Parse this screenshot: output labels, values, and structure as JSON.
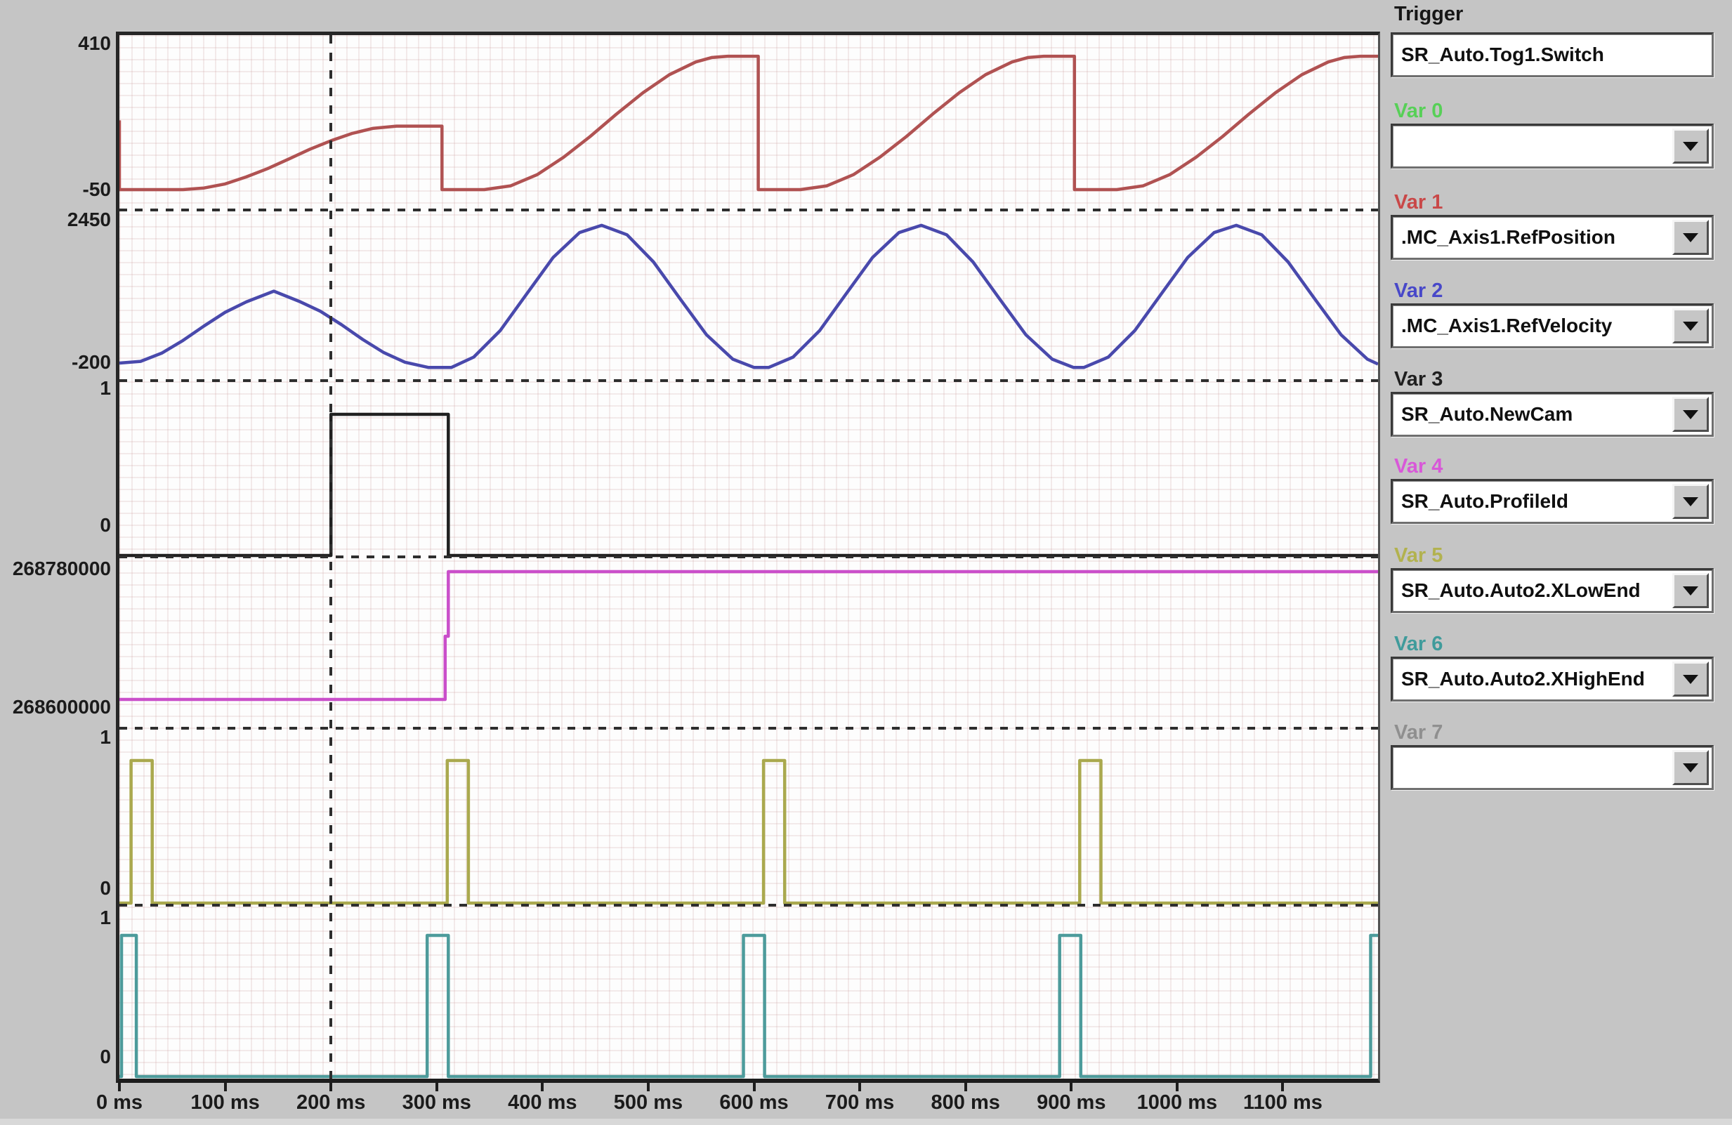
{
  "panel": {
    "trigger_label": "Trigger",
    "trigger_value": "SR_Auto.Tog1.Switch",
    "vars": [
      {
        "label": "Var 0",
        "color": "#57d057",
        "value": ""
      },
      {
        "label": "Var 1",
        "color": "#c94848",
        "value": ".MC_Axis1.RefPosition"
      },
      {
        "label": "Var 2",
        "color": "#4848c9",
        "value": ".MC_Axis1.RefVelocity"
      },
      {
        "label": "Var 3",
        "color": "#1f1f1f",
        "value": "SR_Auto.NewCam"
      },
      {
        "label": "Var 4",
        "color": "#d858d8",
        "value": "SR_Auto.ProfileId"
      },
      {
        "label": "Var 5",
        "color": "#b2b24f",
        "value": "SR_Auto.Auto2.XLowEnd"
      },
      {
        "label": "Var 6",
        "color": "#3f9b9b",
        "value": "SR_Auto.Auto2.XHighEnd"
      },
      {
        "label": "Var 7",
        "color": "#8f8f8f",
        "value": ""
      }
    ]
  },
  "chart_data": {
    "type": "line",
    "title": "",
    "x_unit": "ms",
    "x_range": [
      0,
      1190
    ],
    "x_ticks_ms": [
      0,
      100,
      200,
      300,
      400,
      500,
      600,
      700,
      800,
      900,
      1000,
      1100
    ],
    "x_tick_labels": [
      "0 ms",
      "100 ms",
      "200 ms",
      "300 ms",
      "400 ms",
      "500 ms",
      "600 ms",
      "700 ms",
      "800 ms",
      "900 ms",
      "1000 ms",
      "1100 ms"
    ],
    "trigger_cursor_ms": 200,
    "grid": "fine dotted",
    "legend_position": "right-panel",
    "series": [
      {
        "name": ".MC_Axis1.RefPosition",
        "var": "Var 1",
        "color": "#b05252",
        "axis_max_label": "410",
        "axis_min_label": "-50",
        "axis_max": 410,
        "axis_min": -50,
        "points": [
          [
            0,
            168
          ],
          [
            0,
            -50
          ],
          [
            60,
            -50
          ],
          [
            80,
            -45
          ],
          [
            100,
            -32
          ],
          [
            120,
            -10
          ],
          [
            140,
            16
          ],
          [
            160,
            46
          ],
          [
            180,
            77
          ],
          [
            200,
            104
          ],
          [
            220,
            127
          ],
          [
            240,
            143
          ],
          [
            262,
            150
          ],
          [
            305,
            150
          ],
          [
            305,
            -50
          ],
          [
            345,
            -50
          ],
          [
            370,
            -38
          ],
          [
            395,
            -3
          ],
          [
            420,
            52
          ],
          [
            445,
            117
          ],
          [
            470,
            188
          ],
          [
            495,
            255
          ],
          [
            520,
            312
          ],
          [
            545,
            352
          ],
          [
            560,
            366
          ],
          [
            575,
            370
          ],
          [
            604,
            370
          ],
          [
            604,
            -50
          ],
          [
            644,
            -50
          ],
          [
            669,
            -38
          ],
          [
            694,
            -3
          ],
          [
            719,
            52
          ],
          [
            744,
            117
          ],
          [
            769,
            188
          ],
          [
            794,
            255
          ],
          [
            819,
            312
          ],
          [
            844,
            352
          ],
          [
            859,
            366
          ],
          [
            874,
            370
          ],
          [
            903,
            370
          ],
          [
            903,
            -50
          ],
          [
            943,
            -50
          ],
          [
            968,
            -38
          ],
          [
            993,
            -3
          ],
          [
            1018,
            52
          ],
          [
            1043,
            117
          ],
          [
            1068,
            188
          ],
          [
            1093,
            255
          ],
          [
            1118,
            312
          ],
          [
            1143,
            352
          ],
          [
            1158,
            366
          ],
          [
            1173,
            370
          ],
          [
            1190,
            370
          ]
        ]
      },
      {
        "name": ".MC_Axis1.RefVelocity",
        "var": "Var 2",
        "color": "#4949ac",
        "axis_max_label": "2450",
        "axis_min_label": "-200",
        "axis_max": 2450,
        "axis_min": -200,
        "points": [
          [
            0,
            -110
          ],
          [
            20,
            -80
          ],
          [
            40,
            70
          ],
          [
            60,
            300
          ],
          [
            80,
            565
          ],
          [
            100,
            815
          ],
          [
            120,
            1005
          ],
          [
            146,
            1200
          ],
          [
            170,
            1015
          ],
          [
            190,
            835
          ],
          [
            210,
            590
          ],
          [
            230,
            320
          ],
          [
            250,
            80
          ],
          [
            270,
            -95
          ],
          [
            292,
            -190
          ],
          [
            314,
            -190
          ],
          [
            335,
            -2
          ],
          [
            360,
            480
          ],
          [
            385,
            1148
          ],
          [
            410,
            1812
          ],
          [
            435,
            2268
          ],
          [
            456,
            2400
          ],
          [
            480,
            2228
          ],
          [
            505,
            1733
          ],
          [
            530,
            1065
          ],
          [
            555,
            407
          ],
          [
            580,
            -40
          ],
          [
            600,
            -190
          ],
          [
            614,
            -190
          ],
          [
            637,
            -2
          ],
          [
            662,
            480
          ],
          [
            687,
            1148
          ],
          [
            712,
            1812
          ],
          [
            737,
            2268
          ],
          [
            758,
            2400
          ],
          [
            782,
            2228
          ],
          [
            807,
            1733
          ],
          [
            832,
            1065
          ],
          [
            857,
            407
          ],
          [
            882,
            -40
          ],
          [
            902,
            -190
          ],
          [
            912,
            -190
          ],
          [
            935,
            -2
          ],
          [
            960,
            480
          ],
          [
            985,
            1148
          ],
          [
            1010,
            1812
          ],
          [
            1035,
            2268
          ],
          [
            1056,
            2400
          ],
          [
            1080,
            2228
          ],
          [
            1105,
            1733
          ],
          [
            1130,
            1065
          ],
          [
            1155,
            407
          ],
          [
            1180,
            -40
          ],
          [
            1190,
            -130
          ]
        ]
      },
      {
        "name": "SR_Auto.NewCam",
        "var": "Var 3",
        "color": "#202020",
        "axis_max_label": "1",
        "axis_min_label": "0",
        "axis_max": 1,
        "axis_min": 0,
        "points": [
          [
            0,
            0
          ],
          [
            200,
            0
          ],
          [
            200,
            1
          ],
          [
            311,
            1
          ],
          [
            311,
            0
          ],
          [
            1190,
            0
          ]
        ]
      },
      {
        "name": "SR_Auto.ProfileId",
        "var": "Var 4",
        "color": "#ca4fca",
        "axis_max_label": "268780000",
        "axis_min_label": "268600000",
        "axis_max": 268780000,
        "axis_min": 268600000,
        "points": [
          [
            0,
            268600000
          ],
          [
            308,
            268600000
          ],
          [
            308,
            268689000
          ],
          [
            311,
            268689000
          ],
          [
            311,
            268780000
          ],
          [
            1190,
            268780000
          ]
        ]
      },
      {
        "name": "SR_Auto.Auto2.XLowEnd",
        "var": "Var 5",
        "color": "#aaa94e",
        "axis_max_label": "1",
        "axis_min_label": "0",
        "axis_max": 1,
        "axis_min": 0,
        "points": [
          [
            0,
            0
          ],
          [
            11,
            0
          ],
          [
            11,
            1
          ],
          [
            31,
            1
          ],
          [
            31,
            0
          ],
          [
            310,
            0
          ],
          [
            310,
            1
          ],
          [
            330,
            1
          ],
          [
            330,
            0
          ],
          [
            609,
            0
          ],
          [
            609,
            1
          ],
          [
            629,
            1
          ],
          [
            629,
            0
          ],
          [
            908,
            0
          ],
          [
            908,
            1
          ],
          [
            928,
            1
          ],
          [
            928,
            0
          ],
          [
            1190,
            0
          ]
        ]
      },
      {
        "name": "SR_Auto.Auto2.XHighEnd",
        "var": "Var 6",
        "color": "#4d9b9b",
        "axis_max_label": "1",
        "axis_min_label": "0",
        "axis_max": 1,
        "axis_min": 0,
        "points": [
          [
            0,
            0
          ],
          [
            2,
            0
          ],
          [
            2,
            1
          ],
          [
            16,
            1
          ],
          [
            16,
            0
          ],
          [
            291,
            0
          ],
          [
            291,
            1
          ],
          [
            311,
            1
          ],
          [
            311,
            0
          ],
          [
            590,
            0
          ],
          [
            590,
            1
          ],
          [
            610,
            1
          ],
          [
            610,
            0
          ],
          [
            889,
            0
          ],
          [
            889,
            1
          ],
          [
            909,
            1
          ],
          [
            909,
            0
          ],
          [
            1183,
            0
          ],
          [
            1183,
            1
          ],
          [
            1190,
            1
          ]
        ]
      }
    ]
  }
}
